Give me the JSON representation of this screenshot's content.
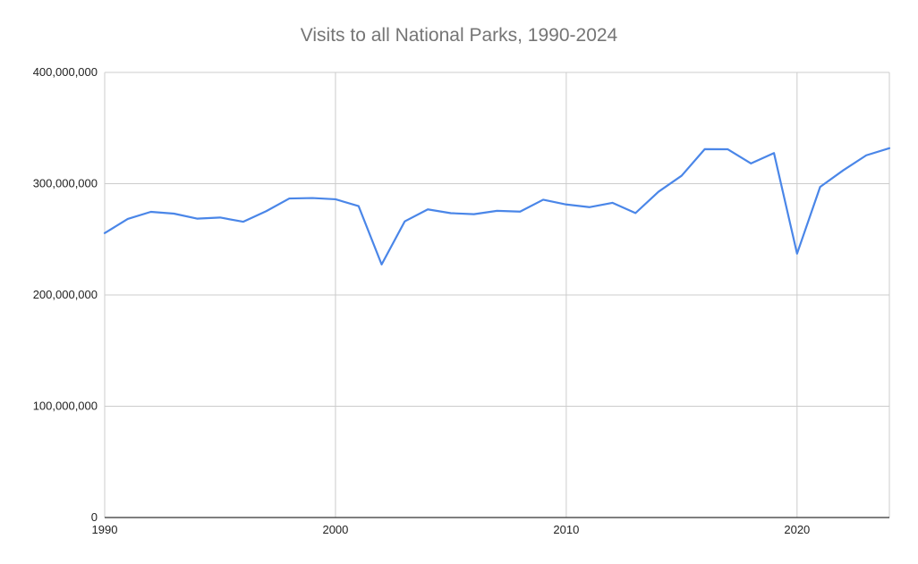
{
  "chart_data": {
    "type": "line",
    "title": "Visits to all National Parks, 1990-2024",
    "xlabel": "",
    "ylabel": "",
    "xlim": [
      1990,
      2024
    ],
    "ylim": [
      0,
      400000000
    ],
    "x_ticks": [
      1990,
      2000,
      2010,
      2020
    ],
    "x_tick_labels": [
      "1990",
      "2000",
      "2010",
      "2020"
    ],
    "y_ticks": [
      0,
      100000000,
      200000000,
      300000000,
      400000000
    ],
    "y_tick_labels": [
      "0",
      "100,000,000",
      "200,000,000",
      "300,000,000",
      "400,000,000"
    ],
    "grid": true,
    "legend": "none",
    "series": [
      {
        "color": "#4a86e8",
        "x": [
          1990,
          1991,
          1992,
          1993,
          1994,
          1995,
          1996,
          1997,
          1998,
          1999,
          2000,
          2001,
          2002,
          2003,
          2004,
          2005,
          2006,
          2007,
          2008,
          2009,
          2010,
          2011,
          2012,
          2013,
          2014,
          2015,
          2016,
          2017,
          2018,
          2019,
          2020,
          2021,
          2022,
          2023,
          2024
        ],
        "values": [
          255600000,
          268300000,
          274700000,
          273100000,
          268600000,
          269600000,
          265800000,
          275300000,
          286700000,
          287100000,
          286000000,
          279900000,
          227400000,
          266100000,
          276900000,
          273500000,
          272600000,
          275600000,
          274900000,
          285600000,
          281300000,
          278900000,
          282800000,
          273600000,
          292800000,
          307200000,
          331000000,
          330900000,
          318200000,
          327500000,
          237100000,
          297100000,
          312000000,
          325500000,
          331900000
        ]
      }
    ]
  }
}
